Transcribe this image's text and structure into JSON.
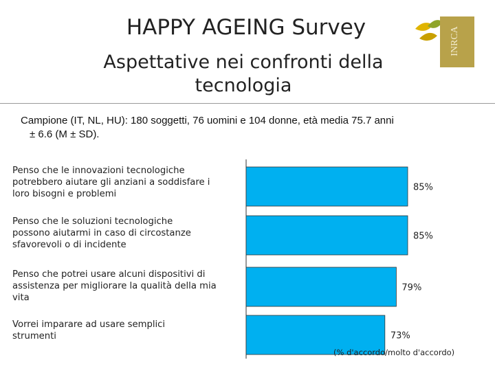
{
  "header": {
    "title": "HAPPY AGEING Survey",
    "subtitle_line1": "Aspettative nei confronti della",
    "subtitle_line2": "tecnologia"
  },
  "sample": {
    "line1": "Campione (IT, NL, HU): 180 soggetti, 76 uomini e 104 donne, età media 75.7 anni",
    "line2": "± 6.6 (M ± SD)."
  },
  "logo": {
    "name": "INRCA logo",
    "text": "INRCA"
  },
  "colors": {
    "bar": "#00b0f0",
    "axis": "#333333"
  },
  "chart_data": {
    "type": "bar",
    "orientation": "horizontal",
    "categories": [
      "Penso che le innovazioni tecnologiche potrebbero aiutare gli anziani a soddisfare i loro bisogni e problemi",
      "Penso che le soluzioni tecnologiche possono aiutarmi in caso di circostanze sfavorevoli o di incidente",
      "Penso che potrei usare alcuni dispositivi di assistenza per migliorare la qualità della mia vita",
      "Vorrei imparare ad usare semplici strumenti"
    ],
    "category_lines": [
      [
        "Penso che le innovazioni tecnologiche",
        "potrebbero aiutare gli anziani a soddisfare i",
        "loro bisogni e problemi"
      ],
      [
        "Penso che le soluzioni tecnologiche",
        "possono aiutarmi in caso di circostanze",
        "sfavorevoli o di incidente"
      ],
      [
        "Penso che potrei usare alcuni dispositivi di",
        "assistenza per migliorare la qualità della mia",
        "vita"
      ],
      [
        "Vorrei imparare ad usare semplici",
        "strumenti"
      ]
    ],
    "values": [
      85,
      85,
      79,
      73
    ],
    "value_labels": [
      "85%",
      "85%",
      "79%",
      "73%"
    ],
    "xlim": [
      0,
      100
    ],
    "note": "(% d'accordo/molto d'accordo)",
    "grid": false,
    "legend": "none"
  }
}
